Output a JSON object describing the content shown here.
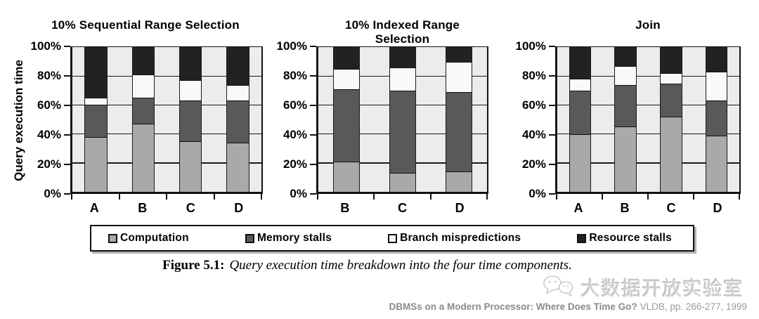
{
  "figure": {
    "ylabel": "Query execution time",
    "yticks": [
      "100%",
      "80%",
      "60%",
      "40%",
      "20%",
      "0%"
    ]
  },
  "chart_data": [
    {
      "type": "bar",
      "stacked": true,
      "units": "percent",
      "title": "10% Sequential Range Selection",
      "ylabel": "Query execution time",
      "ylim": [
        0,
        100
      ],
      "ytick_labels": [
        "0%",
        "20%",
        "40%",
        "60%",
        "80%",
        "100%"
      ],
      "grid": true,
      "categories": [
        "A",
        "B",
        "C",
        "D"
      ],
      "series": [
        {
          "name": "Computation",
          "values": [
            38,
            47,
            35,
            34
          ]
        },
        {
          "name": "Memory stalls",
          "values": [
            22,
            18,
            28,
            29
          ]
        },
        {
          "name": "Branch mispredictions",
          "values": [
            5,
            16,
            14,
            11
          ]
        },
        {
          "name": "Resource stalls",
          "values": [
            35,
            19,
            23,
            26
          ]
        }
      ]
    },
    {
      "type": "bar",
      "stacked": true,
      "units": "percent",
      "title": "10% Indexed Range Selection",
      "ylim": [
        0,
        100
      ],
      "ytick_labels": [
        "0%",
        "20%",
        "40%",
        "60%",
        "80%",
        "100%"
      ],
      "grid": true,
      "categories": [
        "B",
        "C",
        "D"
      ],
      "series": [
        {
          "name": "Computation",
          "values": [
            21,
            13,
            14
          ]
        },
        {
          "name": "Memory stalls",
          "values": [
            50,
            57,
            55
          ]
        },
        {
          "name": "Branch mispredictions",
          "values": [
            14,
            16,
            21
          ]
        },
        {
          "name": "Resource stalls",
          "values": [
            15,
            14,
            10
          ]
        }
      ]
    },
    {
      "type": "bar",
      "stacked": true,
      "units": "percent",
      "title": "Join",
      "ylim": [
        0,
        100
      ],
      "ytick_labels": [
        "0%",
        "20%",
        "40%",
        "60%",
        "80%",
        "100%"
      ],
      "grid": true,
      "categories": [
        "A",
        "B",
        "C",
        "D"
      ],
      "series": [
        {
          "name": "Computation",
          "values": [
            40,
            45,
            52,
            39
          ]
        },
        {
          "name": "Memory stalls",
          "values": [
            30,
            29,
            23,
            24
          ]
        },
        {
          "name": "Branch mispredictions",
          "values": [
            8,
            13,
            7,
            20
          ]
        },
        {
          "name": "Resource stalls",
          "values": [
            22,
            13,
            18,
            17
          ]
        }
      ]
    }
  ],
  "legend": {
    "position": "bottom",
    "items": [
      {
        "label": "Computation",
        "color": "#a9a9a9"
      },
      {
        "label": "Memory stalls",
        "color": "#595959"
      },
      {
        "label": "Branch mispredictions",
        "color": "#f9f9f9"
      },
      {
        "label": "Resource stalls",
        "color": "#222222"
      }
    ]
  },
  "caption": {
    "prefix": "Figure 5.1:",
    "text": "Query execution time breakdown into the four time components."
  },
  "watermark": {
    "icon": "wechat-chat-bubbles-icon",
    "text": "大数据开放实验室"
  },
  "citation": {
    "bold": "DBMSs on a Modern Processor: Where Does Time Go?",
    "rest": "VLDB, pp. 266-277, 1999"
  },
  "colors": {
    "plot_background": "#ececec",
    "gridline": "#1a1a1a",
    "axis": "#111111"
  }
}
